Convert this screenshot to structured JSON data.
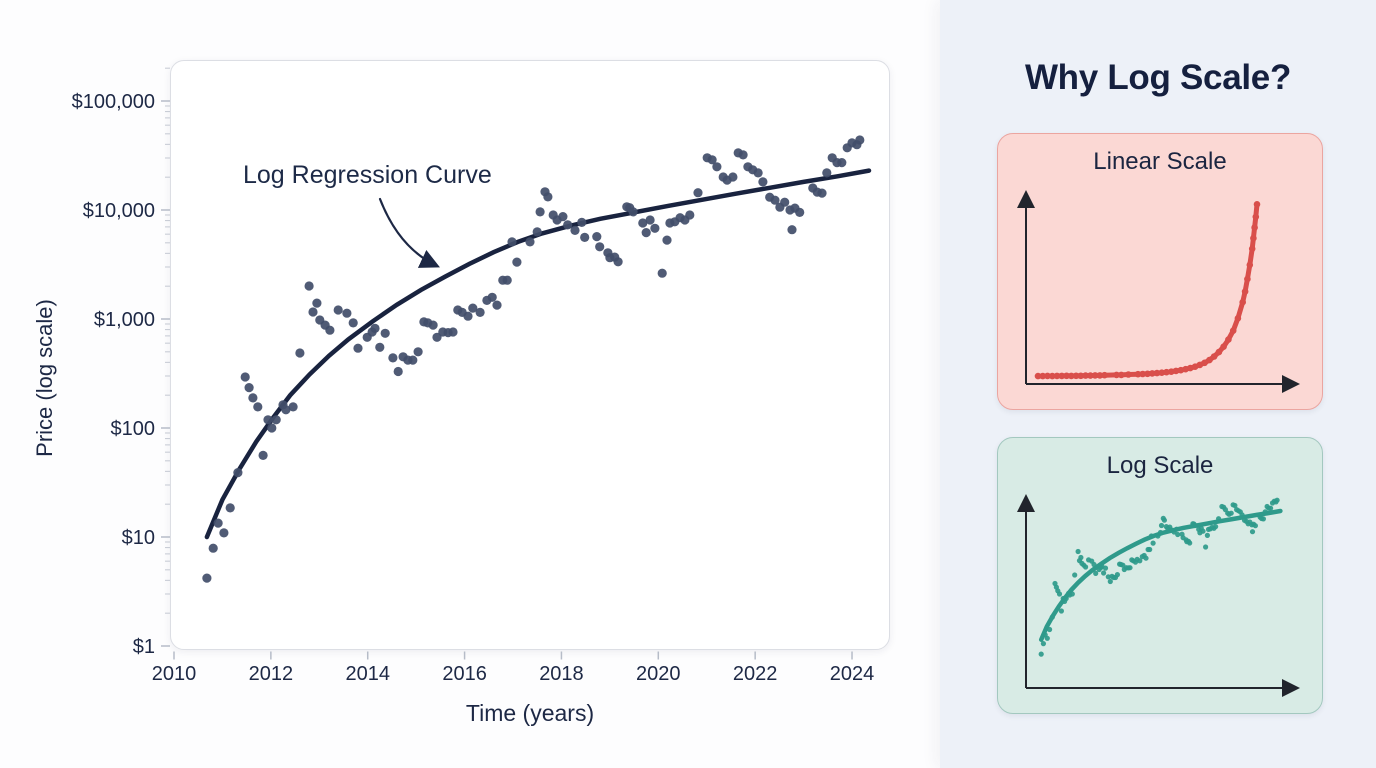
{
  "page": {
    "bg_left": "#fdfdfe",
    "bg_right": "#edf1f8"
  },
  "main_chart": {
    "ylabel": "Price (log scale)",
    "xlabel": "Time (years)",
    "annotation": "Log Regression Curve",
    "y_tick_labels": [
      "$100,000",
      "$10,000",
      "$1,000",
      "$100",
      "$10",
      "$1"
    ],
    "x_tick_labels": [
      "2010",
      "2012",
      "2014",
      "2016",
      "2018",
      "2020",
      "2022",
      "2024"
    ],
    "colors": {
      "dot": "#434f6a",
      "curve": "#19233f",
      "text": "#1d2845",
      "tick_major": "#b6bcc8",
      "tick_minor": "#c9cdd6",
      "panel_border": "#dcdee4"
    }
  },
  "side_panel": {
    "title": "Why Log Scale?",
    "cards": [
      {
        "label": "Linear Scale",
        "bg": "#fbd8d4",
        "border": "#eba5a0",
        "accent": "#d94f4b",
        "scale": "linear",
        "mini": {
          "type": "linear",
          "points": [
            [
              0.0,
              0.005
            ],
            [
              0.02,
              0.005
            ],
            [
              0.04,
              0.006
            ],
            [
              0.06,
              0.005
            ],
            [
              0.08,
              0.006
            ],
            [
              0.1,
              0.006
            ],
            [
              0.12,
              0.007
            ],
            [
              0.14,
              0.006
            ],
            [
              0.16,
              0.007
            ],
            [
              0.18,
              0.007
            ],
            [
              0.2,
              0.008
            ],
            [
              0.22,
              0.008
            ],
            [
              0.24,
              0.009
            ],
            [
              0.26,
              0.009
            ],
            [
              0.28,
              0.01
            ],
            [
              0.33,
              0.012
            ],
            [
              0.35,
              0.012
            ],
            [
              0.38,
              0.014
            ],
            [
              0.42,
              0.016
            ],
            [
              0.44,
              0.017
            ],
            [
              0.46,
              0.018
            ],
            [
              0.48,
              0.02
            ],
            [
              0.5,
              0.022
            ],
            [
              0.52,
              0.024
            ],
            [
              0.54,
              0.027
            ],
            [
              0.56,
              0.03
            ],
            [
              0.58,
              0.034
            ],
            [
              0.6,
              0.038
            ],
            [
              0.62,
              0.044
            ],
            [
              0.64,
              0.05
            ],
            [
              0.66,
              0.058
            ],
            [
              0.68,
              0.068
            ],
            [
              0.7,
              0.08
            ],
            [
              0.72,
              0.095
            ],
            [
              0.74,
              0.115
            ],
            [
              0.76,
              0.14
            ],
            [
              0.78,
              0.17
            ],
            [
              0.8,
              0.21
            ],
            [
              0.82,
              0.26
            ],
            [
              0.84,
              0.33
            ],
            [
              0.86,
              0.42
            ],
            [
              0.87,
              0.48
            ],
            [
              0.88,
              0.55
            ],
            [
              0.89,
              0.63
            ],
            [
              0.9,
              0.72
            ],
            [
              0.905,
              0.78
            ],
            [
              0.91,
              0.84
            ],
            [
              0.915,
              0.9
            ],
            [
              0.92,
              0.97
            ]
          ]
        }
      },
      {
        "label": "Log Scale",
        "bg": "#d8ebe5",
        "border": "#a3c8bf",
        "accent": "#2f9a8b",
        "scale": "log",
        "mini": {
          "type": "log",
          "source": "chart_data"
        }
      }
    ]
  },
  "chart_data": {
    "type": "scatter",
    "title": "",
    "xlabel": "Time (years)",
    "ylabel": "Price (log scale)",
    "x_range": [
      2010,
      2025
    ],
    "y_scale": "log",
    "y_range": [
      1,
      237000
    ],
    "grid": false,
    "legend": false,
    "x_ticks": [
      2010,
      2012,
      2014,
      2016,
      2018,
      2020,
      2022,
      2024
    ],
    "y_ticks": [
      100000,
      10000,
      1000,
      100,
      10,
      1
    ],
    "series": [
      {
        "name": "Price observations",
        "style": "scatter"
      },
      {
        "name": "Log Regression Curve",
        "style": "line"
      }
    ],
    "points": [
      [
        2010.68,
        4.2
      ],
      [
        2010.81,
        7.9
      ],
      [
        2010.91,
        13.4
      ],
      [
        2011.03,
        10.9
      ],
      [
        2011.16,
        18.5
      ],
      [
        2011.32,
        39
      ],
      [
        2011.47,
        294
      ],
      [
        2011.55,
        235
      ],
      [
        2011.63,
        189
      ],
      [
        2011.73,
        156
      ],
      [
        2011.84,
        56
      ],
      [
        2011.94,
        119
      ],
      [
        2012.02,
        100
      ],
      [
        2012.11,
        119
      ],
      [
        2012.25,
        163
      ],
      [
        2012.31,
        147
      ],
      [
        2012.46,
        156
      ],
      [
        2012.6,
        488
      ],
      [
        2012.79,
        2010
      ],
      [
        2012.87,
        1160
      ],
      [
        2012.95,
        1400
      ],
      [
        2013.01,
        980
      ],
      [
        2013.12,
        880
      ],
      [
        2013.22,
        790
      ],
      [
        2013.39,
        1210
      ],
      [
        2013.57,
        1130
      ],
      [
        2013.7,
        920
      ],
      [
        2013.8,
        540
      ],
      [
        2013.99,
        680
      ],
      [
        2014.09,
        760
      ],
      [
        2014.15,
        820
      ],
      [
        2014.25,
        550
      ],
      [
        2014.36,
        740
      ],
      [
        2014.52,
        440
      ],
      [
        2014.63,
        330
      ],
      [
        2014.73,
        450
      ],
      [
        2014.83,
        420
      ],
      [
        2014.93,
        420
      ],
      [
        2015.04,
        500
      ],
      [
        2015.16,
        940
      ],
      [
        2015.24,
        920
      ],
      [
        2015.35,
        880
      ],
      [
        2015.43,
        680
      ],
      [
        2015.55,
        760
      ],
      [
        2015.66,
        750
      ],
      [
        2015.76,
        760
      ],
      [
        2015.86,
        1210
      ],
      [
        2015.95,
        1150
      ],
      [
        2016.07,
        1060
      ],
      [
        2016.17,
        1260
      ],
      [
        2016.32,
        1150
      ],
      [
        2016.46,
        1480
      ],
      [
        2016.57,
        1580
      ],
      [
        2016.67,
        1340
      ],
      [
        2016.79,
        2270
      ],
      [
        2016.88,
        2270
      ],
      [
        2016.98,
        5100
      ],
      [
        2017.08,
        3330
      ],
      [
        2017.35,
        5100
      ],
      [
        2017.5,
        6300
      ],
      [
        2017.56,
        9600
      ],
      [
        2017.66,
        14700
      ],
      [
        2017.72,
        13200
      ],
      [
        2017.83,
        9000
      ],
      [
        2017.91,
        8100
      ],
      [
        2018.03,
        8700
      ],
      [
        2018.13,
        7300
      ],
      [
        2018.28,
        6500
      ],
      [
        2018.42,
        7700
      ],
      [
        2018.48,
        5600
      ],
      [
        2018.73,
        5700
      ],
      [
        2018.79,
        4600
      ],
      [
        2018.96,
        4050
      ],
      [
        2019.0,
        3650
      ],
      [
        2019.1,
        3700
      ],
      [
        2019.17,
        3350
      ],
      [
        2019.35,
        10700
      ],
      [
        2019.41,
        10500
      ],
      [
        2019.48,
        9600
      ],
      [
        2019.68,
        7600
      ],
      [
        2019.75,
        6200
      ],
      [
        2019.83,
        8100
      ],
      [
        2019.93,
        6800
      ],
      [
        2020.08,
        2630
      ],
      [
        2020.18,
        5300
      ],
      [
        2020.24,
        7600
      ],
      [
        2020.34,
        7800
      ],
      [
        2020.45,
        8500
      ],
      [
        2020.55,
        8100
      ],
      [
        2020.65,
        9000
      ],
      [
        2020.82,
        14400
      ],
      [
        2021.01,
        30100
      ],
      [
        2021.11,
        28900
      ],
      [
        2021.21,
        24900
      ],
      [
        2021.34,
        20100
      ],
      [
        2021.42,
        18800
      ],
      [
        2021.54,
        20100
      ],
      [
        2021.65,
        33400
      ],
      [
        2021.75,
        32000
      ],
      [
        2021.85,
        24900
      ],
      [
        2021.95,
        23400
      ],
      [
        2022.06,
        21900
      ],
      [
        2022.16,
        18100
      ],
      [
        2022.3,
        13100
      ],
      [
        2022.41,
        12300
      ],
      [
        2022.51,
        10600
      ],
      [
        2022.61,
        11800
      ],
      [
        2022.72,
        10000
      ],
      [
        2022.76,
        6600
      ],
      [
        2022.82,
        10400
      ],
      [
        2022.92,
        9500
      ],
      [
        2023.19,
        15900
      ],
      [
        2023.28,
        14600
      ],
      [
        2023.38,
        14300
      ],
      [
        2023.48,
        21900
      ],
      [
        2023.59,
        30100
      ],
      [
        2023.69,
        27200
      ],
      [
        2023.79,
        27200
      ],
      [
        2023.9,
        37200
      ],
      [
        2024.0,
        41300
      ],
      [
        2024.1,
        39700
      ],
      [
        2024.16,
        43900
      ]
    ],
    "regression": [
      [
        2010.68,
        10
      ],
      [
        2011.0,
        22
      ],
      [
        2011.35,
        42
      ],
      [
        2011.7,
        75
      ],
      [
        2012.05,
        125
      ],
      [
        2012.4,
        200
      ],
      [
        2012.8,
        310
      ],
      [
        2013.2,
        460
      ],
      [
        2013.6,
        650
      ],
      [
        2014.1,
        950
      ],
      [
        2014.6,
        1350
      ],
      [
        2015.1,
        1850
      ],
      [
        2015.6,
        2450
      ],
      [
        2016.1,
        3200
      ],
      [
        2016.6,
        4100
      ],
      [
        2017.1,
        5100
      ],
      [
        2017.6,
        6100
      ],
      [
        2018.2,
        7200
      ],
      [
        2018.8,
        8300
      ],
      [
        2019.5,
        9500
      ],
      [
        2020.2,
        10900
      ],
      [
        2020.9,
        12400
      ],
      [
        2021.6,
        14100
      ],
      [
        2022.3,
        16000
      ],
      [
        2023.0,
        18100
      ],
      [
        2023.7,
        20400
      ],
      [
        2024.35,
        23000
      ]
    ]
  }
}
